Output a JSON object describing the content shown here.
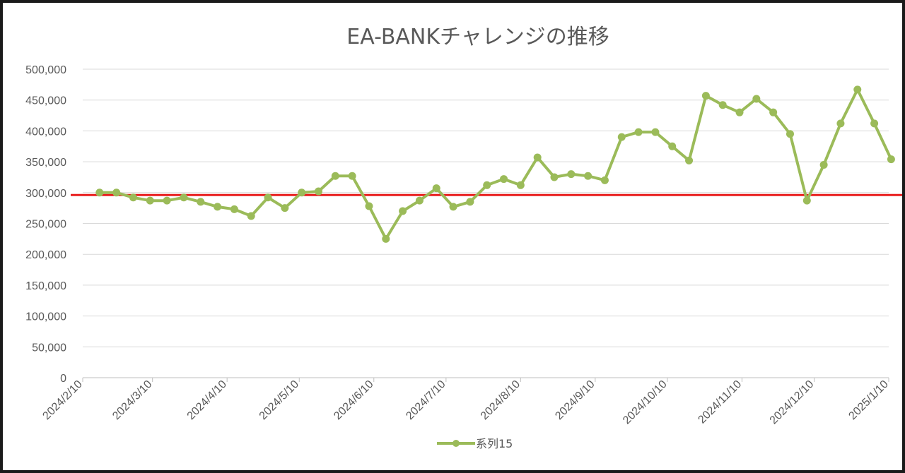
{
  "chart_data": {
    "type": "line",
    "title": "EA-BANKチャレンジの推移",
    "xlabel": "",
    "ylabel": "",
    "ylim": [
      0,
      500000
    ],
    "y_ticks": [
      0,
      50000,
      100000,
      150000,
      200000,
      250000,
      300000,
      350000,
      400000,
      450000,
      500000
    ],
    "y_tick_labels": [
      "0",
      "50,000",
      "100,000",
      "150,000",
      "200,000",
      "250,000",
      "300,000",
      "350,000",
      "400,000",
      "450,000",
      "500,000"
    ],
    "xlim": [
      "2024/2/10",
      "2025/1/10"
    ],
    "x_tick_labels": [
      "2024/2/10",
      "2024/3/10",
      "2024/4/10",
      "2024/5/10",
      "2024/6/10",
      "2024/7/10",
      "2024/8/10",
      "2024/9/10",
      "2024/10/10",
      "2024/11/10",
      "2024/12/10",
      "2025/1/10"
    ],
    "grid": true,
    "legend_position": "bottom",
    "series": [
      {
        "name": "系列15",
        "color": "#9bbb59",
        "x": [
          "2024/2/17",
          "2024/2/24",
          "2024/3/2",
          "2024/3/9",
          "2024/3/16",
          "2024/3/23",
          "2024/3/30",
          "2024/4/6",
          "2024/4/13",
          "2024/4/20",
          "2024/4/27",
          "2024/5/4",
          "2024/5/11",
          "2024/5/18",
          "2024/5/25",
          "2024/6/1",
          "2024/6/8",
          "2024/6/15",
          "2024/6/22",
          "2024/6/29",
          "2024/7/6",
          "2024/7/13",
          "2024/7/20",
          "2024/7/27",
          "2024/8/3",
          "2024/8/10",
          "2024/8/17",
          "2024/8/24",
          "2024/8/31",
          "2024/9/7",
          "2024/9/14",
          "2024/9/21",
          "2024/9/28",
          "2024/10/5",
          "2024/10/12",
          "2024/10/19",
          "2024/10/26",
          "2024/11/2",
          "2024/11/9",
          "2024/11/16",
          "2024/11/23",
          "2024/11/30",
          "2024/12/7",
          "2024/12/14",
          "2024/12/21",
          "2024/12/28",
          "2025/1/4",
          "2025/1/11"
        ],
        "values": [
          300000,
          300000,
          292000,
          287000,
          287000,
          292000,
          285000,
          277000,
          273000,
          262000,
          292000,
          275000,
          300000,
          302000,
          327000,
          327000,
          278000,
          225000,
          270000,
          287000,
          307000,
          277000,
          285000,
          312000,
          322000,
          312000,
          357000,
          325000,
          330000,
          327000,
          320000,
          390000,
          398000,
          398000,
          375000,
          352000,
          457000,
          442000,
          430000,
          452000,
          430000,
          395000,
          287000,
          345000,
          412000,
          467000,
          412000,
          354000
        ]
      }
    ],
    "reference_line": {
      "value": 296000,
      "color": "#e81c1c"
    }
  }
}
